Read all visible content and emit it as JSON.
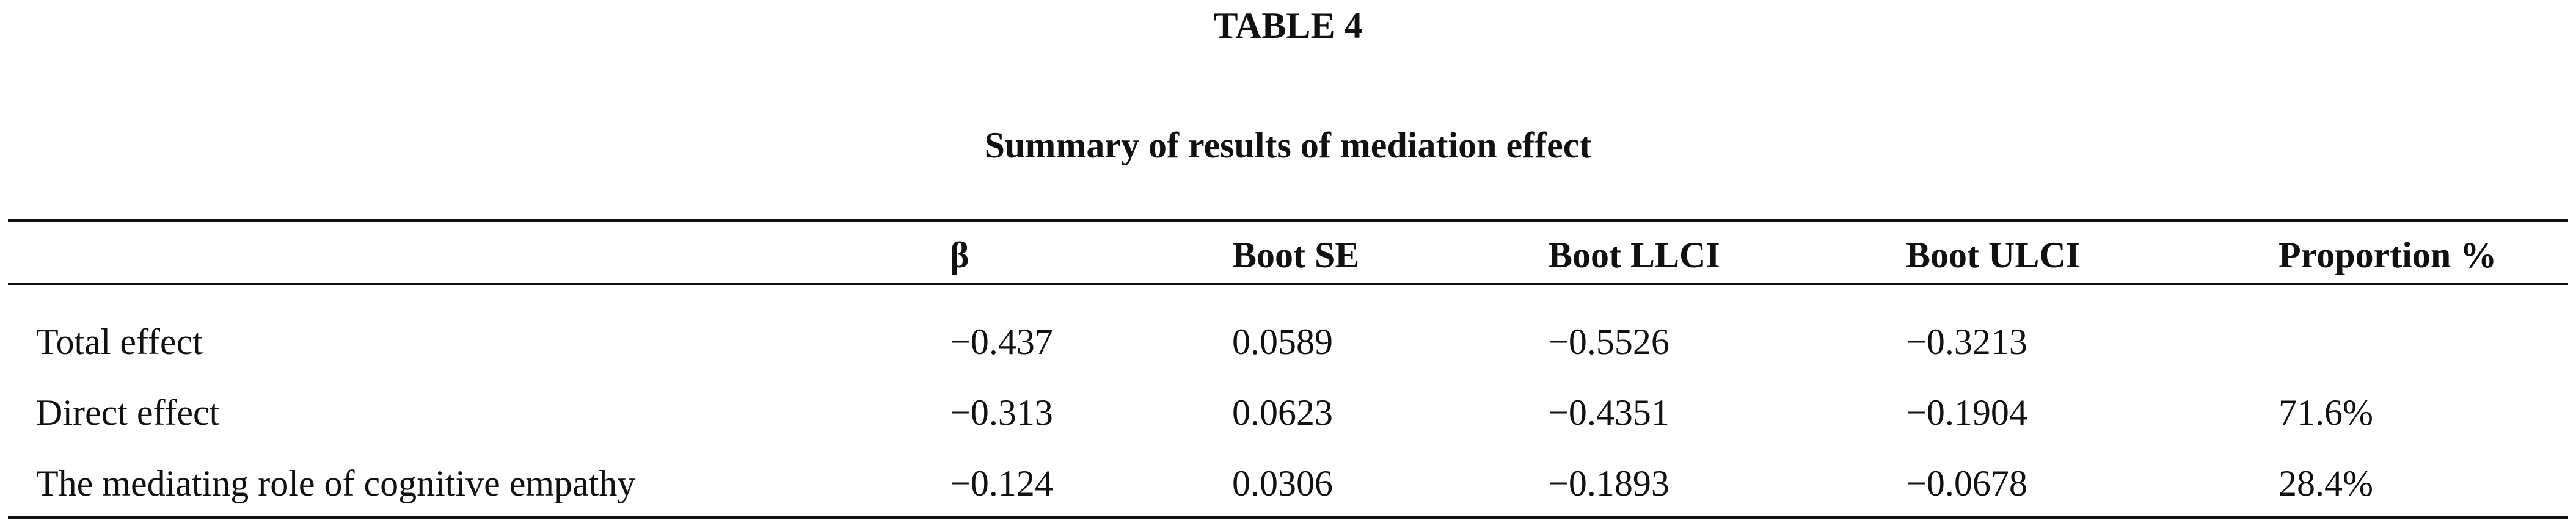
{
  "table": {
    "label": "TABLE 4",
    "title": "Summary of results of mediation effect",
    "columns": [
      "",
      "β",
      "Boot SE",
      "Boot LLCI",
      "Boot ULCI",
      "Proportion %"
    ],
    "rows": [
      [
        "Total effect",
        "−0.437",
        "0.0589",
        "−0.5526",
        "−0.3213",
        null
      ],
      [
        "Direct effect",
        "−0.313",
        "0.0623",
        "−0.4351",
        "−0.1904",
        "71.6%"
      ],
      [
        "The mediating role of cognitive empathy",
        "−0.124",
        "0.0306",
        "−0.1893",
        "−0.0678",
        "28.4%"
      ]
    ]
  }
}
